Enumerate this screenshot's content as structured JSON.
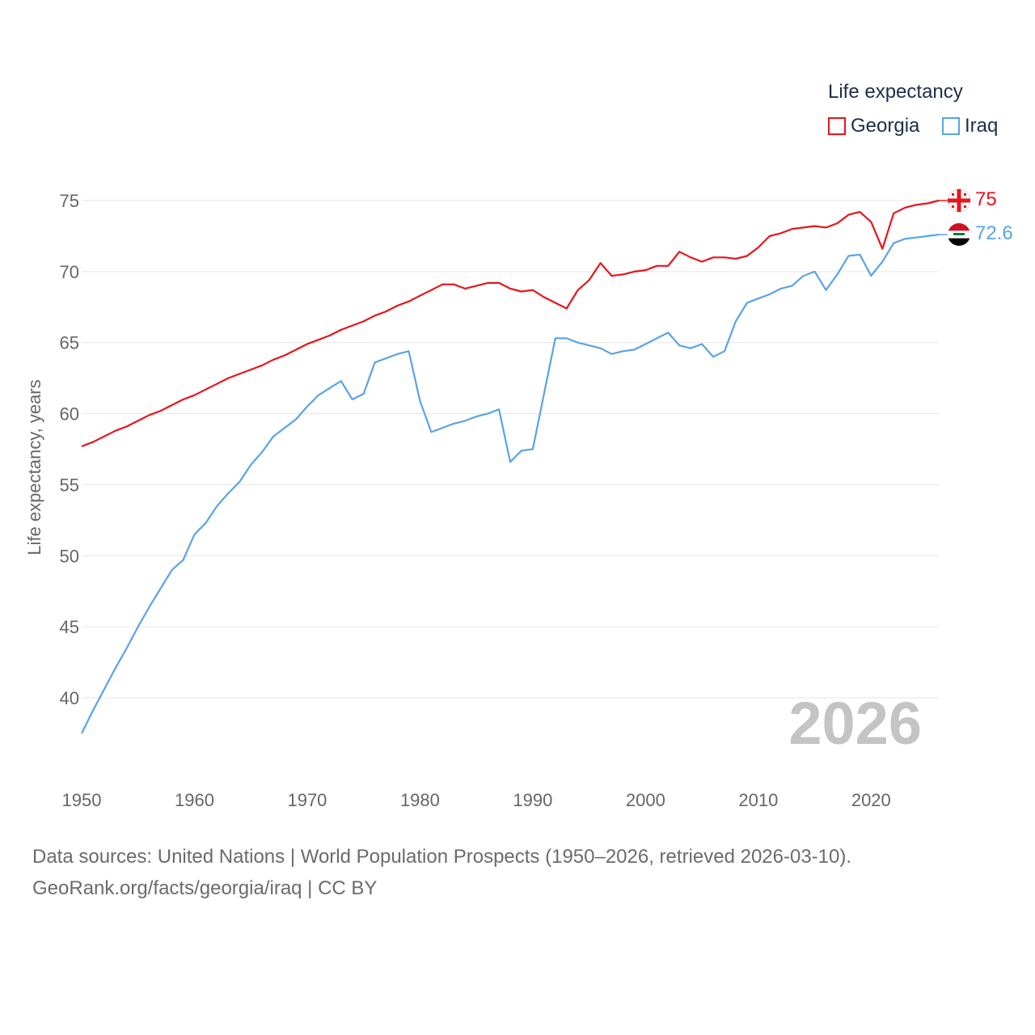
{
  "legend": {
    "title": "Life expectancy",
    "items": [
      {
        "label": "Georgia",
        "color": "#e8141b"
      },
      {
        "label": "Iraq",
        "color": "#5aa3e6"
      }
    ]
  },
  "footer": {
    "source_line": "Data sources: United Nations | World Population Prospects (1950–2026, retrieved 2026-03-10).",
    "credit_line": "GeoRank.org/facts/georgia/iraq | CC BY"
  },
  "chart_data": {
    "type": "line",
    "title": "Life expectancy",
    "xlabel": "",
    "ylabel": "Life expectancy, years",
    "xlim": [
      1950,
      2026
    ],
    "ylim": [
      36.5,
      77
    ],
    "x_ticks": [
      1950,
      1960,
      1970,
      1980,
      1990,
      2000,
      2010,
      2020
    ],
    "y_ticks": [
      40,
      45,
      50,
      55,
      60,
      65,
      70,
      75
    ],
    "year_watermark": "2026",
    "end_labels": {
      "Georgia": "75",
      "Iraq": "72.6"
    },
    "x": [
      1950,
      1951,
      1952,
      1953,
      1954,
      1955,
      1956,
      1957,
      1958,
      1959,
      1960,
      1961,
      1962,
      1963,
      1964,
      1965,
      1966,
      1967,
      1968,
      1969,
      1970,
      1971,
      1972,
      1973,
      1974,
      1975,
      1976,
      1977,
      1978,
      1979,
      1980,
      1981,
      1982,
      1983,
      1984,
      1985,
      1986,
      1987,
      1988,
      1989,
      1990,
      1991,
      1992,
      1993,
      1994,
      1995,
      1996,
      1997,
      1998,
      1999,
      2000,
      2001,
      2002,
      2003,
      2004,
      2005,
      2006,
      2007,
      2008,
      2009,
      2010,
      2011,
      2012,
      2013,
      2014,
      2015,
      2016,
      2017,
      2018,
      2019,
      2020,
      2021,
      2022,
      2023,
      2024,
      2025,
      2026
    ],
    "series": [
      {
        "name": "Georgia",
        "color": "#e8141b",
        "values": [
          57.7,
          58.0,
          58.4,
          58.8,
          59.1,
          59.5,
          59.9,
          60.2,
          60.6,
          61.0,
          61.3,
          61.7,
          62.1,
          62.5,
          62.8,
          63.1,
          63.4,
          63.8,
          64.1,
          64.5,
          64.9,
          65.2,
          65.5,
          65.9,
          66.2,
          66.5,
          66.9,
          67.2,
          67.6,
          67.9,
          68.3,
          68.7,
          69.1,
          69.1,
          68.8,
          69.0,
          69.2,
          69.2,
          68.8,
          68.6,
          68.7,
          68.2,
          67.8,
          67.4,
          68.7,
          69.4,
          70.6,
          69.7,
          69.8,
          70.0,
          70.1,
          70.4,
          70.4,
          71.4,
          71.0,
          70.7,
          71.0,
          71.0,
          70.9,
          71.1,
          71.7,
          72.5,
          72.7,
          73.0,
          73.1,
          73.2,
          73.1,
          73.4,
          74.0,
          74.2,
          73.5,
          71.6,
          74.1,
          74.5,
          74.7,
          74.8,
          75.0
        ]
      },
      {
        "name": "Iraq",
        "color": "#5aa3e6",
        "values": [
          37.5,
          39.1,
          40.6,
          42.1,
          43.5,
          45.0,
          46.4,
          47.7,
          49.0,
          49.7,
          51.5,
          52.3,
          53.5,
          54.4,
          55.2,
          56.4,
          57.3,
          58.4,
          59.0,
          59.6,
          60.5,
          61.3,
          61.8,
          62.3,
          61.0,
          61.4,
          63.6,
          63.9,
          64.2,
          64.4,
          60.9,
          58.7,
          59.0,
          59.3,
          59.5,
          59.8,
          60.0,
          60.3,
          56.6,
          57.4,
          57.5,
          61.4,
          65.3,
          65.3,
          65.0,
          64.8,
          64.6,
          64.2,
          64.4,
          64.5,
          64.9,
          65.3,
          65.7,
          64.8,
          64.6,
          64.9,
          64.0,
          64.4,
          66.5,
          67.8,
          68.1,
          68.4,
          68.8,
          69.0,
          69.7,
          70.0,
          68.7,
          69.8,
          71.1,
          71.2,
          69.7,
          70.7,
          72.0,
          72.3,
          72.4,
          72.5,
          72.6
        ]
      }
    ]
  }
}
